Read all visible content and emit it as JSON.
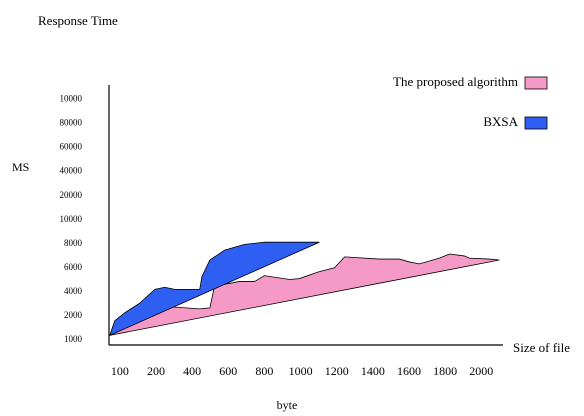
{
  "chart_data": {
    "type": "area",
    "title": "Response Time",
    "ylabel": "MS",
    "xlabel": "byte",
    "xlabel_end": "Size of file",
    "legend": "top-right",
    "xlim": [
      -0.3,
      10.6
    ],
    "ylim": [
      -0.2,
      10.6
    ],
    "xticks": [
      {
        "value": 0,
        "label": "100"
      },
      {
        "value": 1,
        "label": "200"
      },
      {
        "value": 2,
        "label": "400"
      },
      {
        "value": 3,
        "label": "600"
      },
      {
        "value": 4,
        "label": "800"
      },
      {
        "value": 5,
        "label": "1000"
      },
      {
        "value": 6,
        "label": "1200"
      },
      {
        "value": 7,
        "label": "1400"
      },
      {
        "value": 8,
        "label": "1600"
      },
      {
        "value": 9,
        "label": "1800"
      },
      {
        "value": 10,
        "label": "2000"
      }
    ],
    "yticks": [
      {
        "value": 0,
        "label": "1000"
      },
      {
        "value": 1,
        "label": "2000"
      },
      {
        "value": 2,
        "label": "4000"
      },
      {
        "value": 3,
        "label": "6000"
      },
      {
        "value": 4,
        "label": "8000"
      },
      {
        "value": 5,
        "label": "10000"
      },
      {
        "value": 6,
        "label": "20000"
      },
      {
        "value": 7,
        "label": "40000"
      },
      {
        "value": 8,
        "label": "60000"
      },
      {
        "value": 9,
        "label": "80000"
      },
      {
        "value": 10,
        "label": "10000"
      }
    ],
    "series": [
      {
        "name": "The proposed algorithm",
        "color": "#f59ac6",
        "x": [
          -0.28,
          0.14,
          0.83,
          1.1,
          2.21,
          2.49,
          2.62,
          3.31,
          3.73,
          4.0,
          4.7,
          4.97,
          5.52,
          5.94,
          6.22,
          7.18,
          7.73,
          8.01,
          8.29,
          8.84,
          9.12,
          9.53,
          9.67,
          10.22,
          10.5
        ],
        "values": [
          0.2,
          0.61,
          1.3,
          1.42,
          1.3,
          1.34,
          2.24,
          2.44,
          2.44,
          2.68,
          2.52,
          2.56,
          2.85,
          3.01,
          3.46,
          3.37,
          3.37,
          3.25,
          3.17,
          3.41,
          3.58,
          3.5,
          3.41,
          3.37,
          3.33
        ]
      },
      {
        "name": "BXSA",
        "color": "#2f5ff2",
        "x": [
          -0.28,
          -0.14,
          0.14,
          0.55,
          0.97,
          1.24,
          1.52,
          2.21,
          2.27,
          2.49,
          2.9,
          3.45,
          4.01,
          5.52
        ],
        "values": [
          0.2,
          0.81,
          1.14,
          1.54,
          2.11,
          2.2,
          2.11,
          2.11,
          2.64,
          3.33,
          3.74,
          3.98,
          4.07,
          4.07
        ]
      }
    ]
  }
}
